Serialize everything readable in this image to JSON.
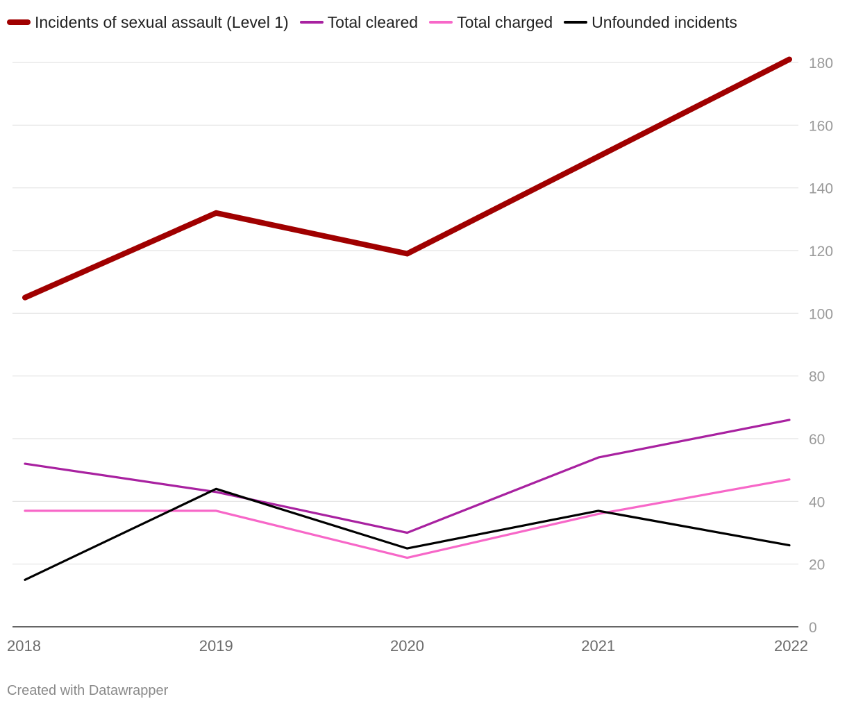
{
  "chart_data": {
    "type": "line",
    "title": "",
    "xlabel": "",
    "ylabel": "",
    "x": [
      "2018",
      "2019",
      "2020",
      "2021",
      "2022"
    ],
    "ylim": [
      0,
      180
    ],
    "yticks": [
      0,
      20,
      40,
      60,
      80,
      100,
      120,
      140,
      160,
      180
    ],
    "legend_position": "top-left",
    "grid": true,
    "series": [
      {
        "name": "Incidents of sexual assault (Level 1)",
        "color": "#a00000",
        "emphasis": "thick",
        "values": [
          105,
          132,
          119,
          150,
          181
        ]
      },
      {
        "name": "Total cleared",
        "color": "#a821a0",
        "emphasis": "normal",
        "values": [
          52,
          43,
          30,
          54,
          66
        ]
      },
      {
        "name": "Total charged",
        "color": "#f767c8",
        "emphasis": "normal",
        "values": [
          37,
          37,
          22,
          36,
          47
        ]
      },
      {
        "name": "Unfounded incidents",
        "color": "#000000",
        "emphasis": "normal",
        "values": [
          15,
          44,
          25,
          37,
          26
        ]
      }
    ]
  },
  "footer": {
    "credit": "Created with Datawrapper"
  }
}
